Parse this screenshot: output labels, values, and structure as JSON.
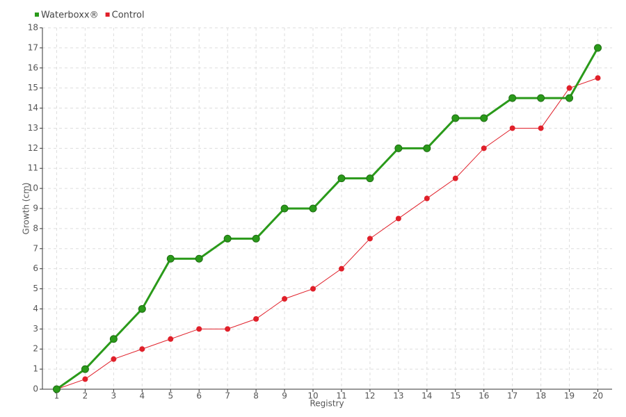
{
  "chart_data": {
    "type": "line",
    "x_label": "Registry",
    "y_label": "Growth (cm)",
    "categories": [
      "1",
      "2",
      "3",
      "4",
      "5",
      "6",
      "7",
      "8",
      "9",
      "10",
      "11",
      "12",
      "13",
      "14",
      "15",
      "16",
      "17",
      "18",
      "19",
      "20"
    ],
    "series": [
      {
        "name": "Waterboxx®",
        "color": "#2a9a1a",
        "values": [
          0,
          1,
          2.5,
          4,
          6.5,
          6.5,
          7.5,
          7.5,
          9,
          9,
          10.5,
          10.5,
          12,
          12,
          13.5,
          13.5,
          14.5,
          14.5,
          14.5,
          17
        ]
      },
      {
        "name": "Control",
        "color": "#e0202a",
        "values": [
          0,
          0.5,
          1.5,
          2,
          2.5,
          3,
          3,
          3.5,
          4.5,
          5,
          6,
          7.5,
          8.5,
          9.5,
          10.5,
          12,
          13,
          13,
          15,
          15.5
        ]
      }
    ],
    "ylim": [
      0,
      18
    ],
    "yticks": [
      0,
      1,
      2,
      3,
      4,
      5,
      6,
      7,
      8,
      9,
      10,
      11,
      12,
      13,
      14,
      15,
      16,
      17,
      18
    ],
    "grid": true,
    "legend": "top-left"
  }
}
